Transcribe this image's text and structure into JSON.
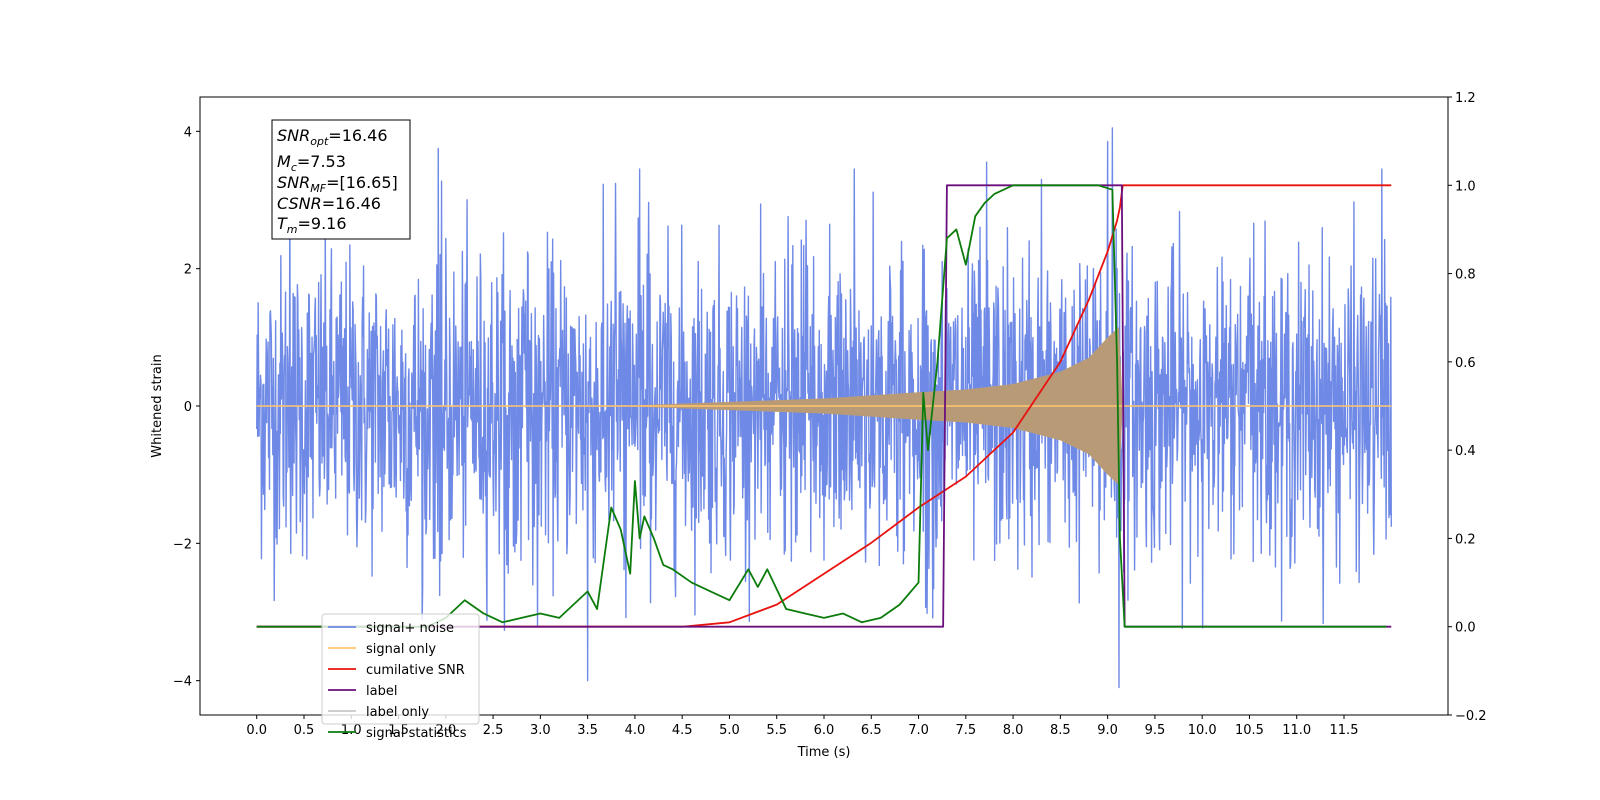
{
  "chart_data": {
    "type": "line",
    "xlabel": "Time (s)",
    "ylabel_left": "Whitened strain",
    "ylabel_right": "",
    "xlim": [
      -0.6,
      12.6
    ],
    "ylim_left": [
      -4.5,
      4.5
    ],
    "ylim_right": [
      -0.2,
      1.2
    ],
    "x_ticks": [
      0.0,
      0.5,
      1.0,
      1.5,
      2.0,
      2.5,
      3.0,
      3.5,
      4.0,
      4.5,
      5.0,
      5.5,
      6.0,
      6.5,
      7.0,
      7.5,
      8.0,
      8.5,
      9.0,
      9.5,
      10.0,
      10.5,
      11.0,
      11.5
    ],
    "x_tick_labels": [
      "0.0",
      "0.5",
      "1.0",
      "1.5",
      "2.0",
      "2.5",
      "3.0",
      "3.5",
      "4.0",
      "4.5",
      "5.0",
      "5.5",
      "6.0",
      "6.5",
      "7.0",
      "7.5",
      "8.0",
      "8.5",
      "9.0",
      "9.5",
      "10.0",
      "10.5",
      "11.0",
      "11.5"
    ],
    "y_left_ticks": [
      4,
      2,
      0,
      -2,
      -4
    ],
    "y_left_tick_labels": [
      "4",
      "2",
      "0",
      "−2",
      "−4"
    ],
    "y_right_ticks": [
      1.2,
      1.0,
      0.8,
      0.6,
      0.4,
      0.2,
      0.0,
      -0.2
    ],
    "y_right_tick_labels": [
      "1.2",
      "1.0",
      "0.8",
      "0.6",
      "0.4",
      "0.2",
      "0.0",
      "−0.2"
    ],
    "grid": false,
    "legend_position": "lower-left",
    "legend": [
      {
        "label": "signal+ noise",
        "color": "#6f8ae6"
      },
      {
        "label": "signal only",
        "color": "#ffc66e"
      },
      {
        "label": "cumilative SNR",
        "color": "#e8120e"
      },
      {
        "label": "label",
        "color": "#6a0f7c"
      },
      {
        "label": "label only",
        "color": "#c8c8c8"
      },
      {
        "label": "signal statistics",
        "color": "#0c7c0c"
      }
    ],
    "info_box": {
      "snr_opt": "=16.46",
      "mc": "=7.53",
      "snr_mf": "=[16.65]",
      "csnr": "=16.46",
      "tm": "=9.16"
    },
    "series": [
      {
        "name": "signal+ noise",
        "axis": "left",
        "color": "#6f8ae6",
        "kind": "noise",
        "x_range": [
          0.0,
          12.0
        ],
        "typical_amplitude": 1.2,
        "notable_peaks": [
          [
            0.35,
            3.35
          ],
          [
            1.92,
            3.75
          ],
          [
            3.5,
            -4.0
          ],
          [
            4.05,
            3.45
          ],
          [
            6.32,
            3.45
          ],
          [
            7.72,
            3.55
          ],
          [
            8.3,
            3.3
          ],
          [
            9.0,
            3.85
          ],
          [
            9.05,
            4.05
          ],
          [
            9.12,
            -4.1
          ],
          [
            11.9,
            3.45
          ]
        ]
      },
      {
        "name": "signal only",
        "axis": "left",
        "color": "#ffc66e",
        "kind": "chirp",
        "envelope": [
          [
            0.0,
            0.0
          ],
          [
            4.0,
            0.01
          ],
          [
            5.0,
            0.06
          ],
          [
            6.0,
            0.11
          ],
          [
            7.0,
            0.2
          ],
          [
            7.5,
            0.24
          ],
          [
            8.0,
            0.32
          ],
          [
            8.5,
            0.5
          ],
          [
            8.8,
            0.7
          ],
          [
            9.0,
            1.0
          ],
          [
            9.12,
            1.15
          ],
          [
            9.16,
            0.0
          ],
          [
            12.0,
            0.0
          ]
        ]
      },
      {
        "name": "cumilative SNR",
        "axis": "right",
        "color": "#e8120e",
        "x": [
          0.0,
          4.5,
          5.0,
          5.5,
          6.0,
          6.5,
          7.0,
          7.5,
          8.0,
          8.5,
          8.8,
          9.0,
          9.1,
          9.13,
          9.16,
          12.0
        ],
        "values": [
          0.0,
          0.0,
          0.01,
          0.05,
          0.12,
          0.19,
          0.27,
          0.34,
          0.44,
          0.6,
          0.74,
          0.85,
          0.92,
          0.95,
          1.0,
          1.0
        ]
      },
      {
        "name": "label",
        "axis": "right",
        "color": "#6a0f7c",
        "x": [
          0.0,
          7.26,
          7.3,
          9.15,
          9.18,
          12.0
        ],
        "values": [
          0.0,
          0.0,
          1.0,
          1.0,
          0.0,
          0.0
        ]
      },
      {
        "name": "signal statistics",
        "axis": "right",
        "color": "#0c7c0c",
        "x": [
          0.0,
          1.8,
          2.0,
          2.2,
          2.4,
          2.6,
          2.8,
          3.0,
          3.2,
          3.35,
          3.5,
          3.6,
          3.75,
          3.85,
          3.95,
          4.0,
          4.05,
          4.1,
          4.2,
          4.3,
          4.4,
          4.6,
          4.8,
          5.0,
          5.2,
          5.3,
          5.4,
          5.6,
          5.8,
          6.0,
          6.2,
          6.4,
          6.6,
          6.8,
          7.0,
          7.05,
          7.1,
          7.2,
          7.3,
          7.4,
          7.5,
          7.6,
          7.7,
          7.8,
          7.9,
          8.0,
          8.3,
          8.6,
          8.9,
          9.05,
          9.1,
          9.13,
          9.18,
          11.95
        ],
        "values": [
          0.0,
          0.0,
          0.02,
          0.06,
          0.03,
          0.01,
          0.02,
          0.03,
          0.02,
          0.05,
          0.08,
          0.04,
          0.27,
          0.22,
          0.12,
          0.33,
          0.2,
          0.25,
          0.2,
          0.14,
          0.13,
          0.1,
          0.08,
          0.06,
          0.13,
          0.09,
          0.13,
          0.04,
          0.03,
          0.02,
          0.03,
          0.01,
          0.02,
          0.05,
          0.1,
          0.53,
          0.4,
          0.6,
          0.88,
          0.9,
          0.82,
          0.93,
          0.96,
          0.98,
          0.99,
          1.0,
          1.0,
          1.0,
          1.0,
          0.99,
          0.6,
          0.2,
          0.0,
          0.0
        ]
      }
    ]
  }
}
